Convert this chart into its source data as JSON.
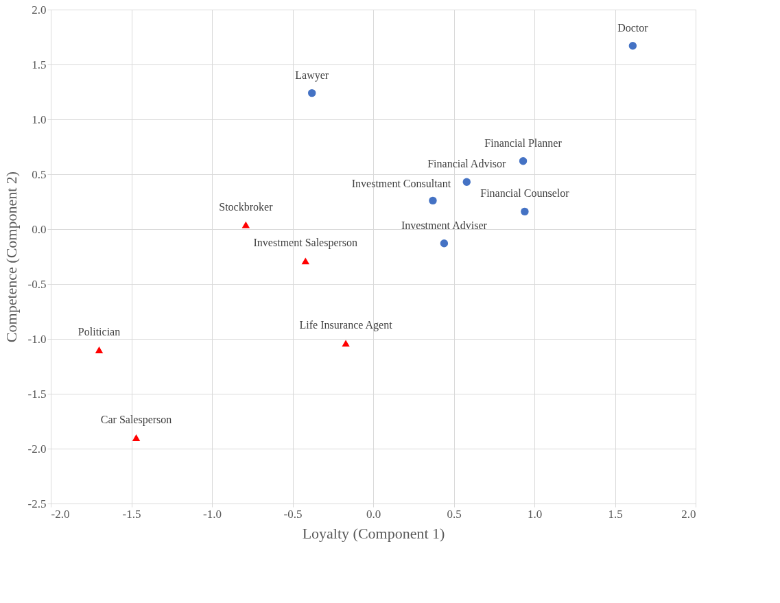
{
  "chart_data": {
    "type": "scatter",
    "xlabel": "Loyalty (Component 1)",
    "ylabel": "Competence (Component 2)",
    "xlim": [
      -2.0,
      2.0
    ],
    "ylim": [
      -2.5,
      2.0
    ],
    "xticks": [
      {
        "value": -2,
        "label": "-2.0"
      },
      {
        "value": -1.5,
        "label": "-1.5"
      },
      {
        "value": -1,
        "label": "-1.0"
      },
      {
        "value": -0.5,
        "label": "-0.5"
      },
      {
        "value": 0,
        "label": "0.0"
      },
      {
        "value": 0.5,
        "label": "0.5"
      },
      {
        "value": 1,
        "label": "1.0"
      },
      {
        "value": 1.5,
        "label": "1.5"
      },
      {
        "value": 2,
        "label": "2.0"
      }
    ],
    "yticks": [
      {
        "value": -2.5,
        "label": "-2.5"
      },
      {
        "value": -2,
        "label": "-2.0"
      },
      {
        "value": -1.5,
        "label": "-1.5"
      },
      {
        "value": -1,
        "label": "-1.0"
      },
      {
        "value": -0.5,
        "label": "-0.5"
      },
      {
        "value": 0,
        "label": "0.0"
      },
      {
        "value": 0.5,
        "label": "0.5"
      },
      {
        "value": 1,
        "label": "1.0"
      },
      {
        "value": 1.5,
        "label": "1.5"
      },
      {
        "value": 2,
        "label": "2.0"
      }
    ],
    "grid": true,
    "series": [
      {
        "color": "#4472c4",
        "marker": "circle",
        "x": [
          1.61,
          -0.38,
          0.93,
          0.58,
          0.37,
          0.94,
          0.44
        ],
        "values": [
          1.67,
          1.24,
          0.62,
          0.43,
          0.26,
          0.16,
          -0.13
        ]
      },
      {
        "color": "#ff0000",
        "marker": "triangle",
        "x": [
          -0.79,
          -0.42,
          -1.7,
          -0.17,
          -1.47
        ],
        "values": [
          0.04,
          -0.29,
          -1.1,
          -1.04,
          -1.9
        ]
      }
    ],
    "annotations": [
      {
        "text": "Doctor",
        "x": 1.61,
        "y": 1.67
      },
      {
        "text": "Lawyer",
        "x": -0.38,
        "y": 1.24
      },
      {
        "text": "Financial Planner",
        "x": 0.93,
        "y": 0.62
      },
      {
        "text": "Financial Advisor",
        "x": 0.58,
        "y": 0.43
      },
      {
        "text": "Investment Consultant",
        "x": 0.37,
        "y": 0.26
      },
      {
        "text": "Financial Counselor",
        "x": 0.94,
        "y": 0.16
      },
      {
        "text": "Investment Adviser",
        "x": 0.44,
        "y": -0.13
      },
      {
        "text": "Stockbroker",
        "x": -0.79,
        "y": 0.04
      },
      {
        "text": "Investment Salesperson",
        "x": -0.42,
        "y": -0.29
      },
      {
        "text": "Politician",
        "x": -1.7,
        "y": -1.1
      },
      {
        "text": "Life Insurance Agent",
        "x": -0.17,
        "y": -1.04
      },
      {
        "text": "Car Salesperson",
        "x": -1.47,
        "y": -1.9
      }
    ]
  }
}
